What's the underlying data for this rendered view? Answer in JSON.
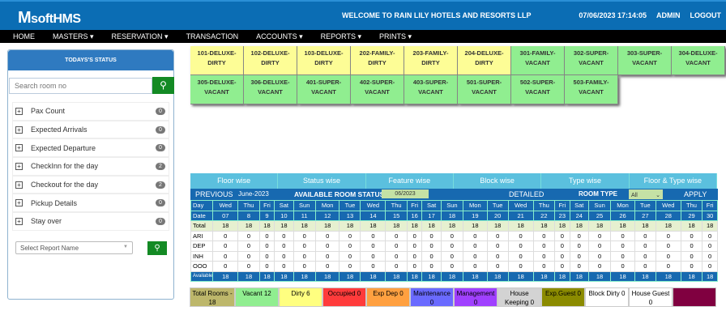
{
  "header": {
    "logo": "softHMS",
    "welcome": "WELCOME TO RAIN LILY HOTELS AND RESORTS LLP",
    "datetime": "07/06/2023 17:14:05",
    "user": "ADMIN",
    "logout": "LOGOUT"
  },
  "nav": [
    "HOME",
    "MASTERS ▾",
    "RESERVATION ▾",
    "TRANSACTION",
    "ACCOUNTS ▾",
    "REPORTS ▾",
    "PRINTS ▾"
  ],
  "sidebar": {
    "title": "TODAYS'S STATUS",
    "search_placeholder": "Search room no",
    "items": [
      {
        "label": "Pax Count",
        "count": "0"
      },
      {
        "label": "Expected Arrivals",
        "count": "0"
      },
      {
        "label": "Expected Departure",
        "count": "0"
      },
      {
        "label": "CheckInn for the day",
        "count": "2"
      },
      {
        "label": "Checkout for the day",
        "count": "2"
      },
      {
        "label": "Pickup Details",
        "count": "0"
      },
      {
        "label": "Stay over",
        "count": "0"
      }
    ],
    "report_placeholder": "Select Report Name"
  },
  "colors": {
    "dirty": "#fdfd96",
    "vacant": "#90ee90"
  },
  "rooms": [
    {
      "l1": "101-DELUXE-",
      "l2": "DIRTY",
      "s": "dirty"
    },
    {
      "l1": "102-DELUXE-",
      "l2": "DIRTY",
      "s": "dirty"
    },
    {
      "l1": "103-DELUXE-",
      "l2": "DIRTY",
      "s": "dirty"
    },
    {
      "l1": "202-FAMILY-",
      "l2": "DIRTY",
      "s": "dirty"
    },
    {
      "l1": "203-FAMILY-",
      "l2": "DIRTY",
      "s": "dirty"
    },
    {
      "l1": "204-DELUXE-",
      "l2": "DIRTY",
      "s": "dirty"
    },
    {
      "l1": "301-FAMILY-",
      "l2": "VACANT",
      "s": "vacant"
    },
    {
      "l1": "302-SUPER-",
      "l2": "VACANT",
      "s": "vacant"
    },
    {
      "l1": "303-SUPER-",
      "l2": "VACANT",
      "s": "vacant"
    },
    {
      "l1": "304-DELUXE-",
      "l2": "VACANT",
      "s": "vacant"
    },
    {
      "l1": "305-DELUXE-",
      "l2": "VACANT",
      "s": "vacant"
    },
    {
      "l1": "306-DELUXE-",
      "l2": "VACANT",
      "s": "vacant"
    },
    {
      "l1": "401-SUPER-",
      "l2": "VACANT",
      "s": "vacant"
    },
    {
      "l1": "402-SUPER-",
      "l2": "VACANT",
      "s": "vacant"
    },
    {
      "l1": "403-SUPER-",
      "l2": "VACANT",
      "s": "vacant"
    },
    {
      "l1": "501-SUPER-",
      "l2": "VACANT",
      "s": "vacant"
    },
    {
      "l1": "502-SUPER-",
      "l2": "VACANT",
      "s": "vacant"
    },
    {
      "l1": "503-FAMILY-",
      "l2": "VACANT",
      "s": "vacant"
    }
  ],
  "tabs": [
    "Floor wise",
    "Status wise",
    "Feature wise",
    "Block wise",
    "Type wise",
    "Floor & Type wise"
  ],
  "controls": {
    "previous": "PREVIOUS",
    "month": "June-2023",
    "title": "AVAILABLE ROOM STATUS",
    "month_input": "06/2023",
    "detailed": "DETAILED",
    "room_type_label": "ROOM TYPE",
    "room_type": "All",
    "apply": "APPLY"
  },
  "grid": {
    "days": [
      "Day",
      "Wed",
      "Thu",
      "Fri",
      "Sat",
      "Sun",
      "Mon",
      "Tue",
      "Wed",
      "Thu",
      "Fri",
      "Sat",
      "Sun",
      "Mon",
      "Tue",
      "Wed",
      "Thu",
      "Fri",
      "Sat",
      "Sun",
      "Mon",
      "Tue",
      "Wed",
      "Thu",
      "Fri"
    ],
    "dates": [
      "Date",
      "07",
      "8",
      "9",
      "10",
      "11",
      "12",
      "13",
      "14",
      "15",
      "16",
      "17",
      "18",
      "19",
      "20",
      "21",
      "22",
      "23",
      "24",
      "25",
      "26",
      "27",
      "28",
      "29",
      "30"
    ],
    "rows": [
      {
        "label": "Total",
        "v": "18"
      },
      {
        "label": "ARI",
        "v": "0"
      },
      {
        "label": "DEP",
        "v": "0"
      },
      {
        "label": "INH",
        "v": "0"
      },
      {
        "label": "OOO",
        "v": "0"
      },
      {
        "label": "Available",
        "v": "18"
      }
    ]
  },
  "legend": [
    {
      "t": "Total Rooms - 18",
      "c": "#bdb76b",
      "w": 56
    },
    {
      "t": "Vacant 12",
      "c": "#90ee90",
      "w": 54
    },
    {
      "t": "Dirty 6",
      "c": "#ffff80",
      "w": 54
    },
    {
      "t": "Occupied 0",
      "c": "#ff3b3b",
      "w": 54
    },
    {
      "t": "Exp Dep 0",
      "c": "#ffa040",
      "w": 54
    },
    {
      "t": "Maintenance 0",
      "c": "#6a6aff",
      "w": 54
    },
    {
      "t": "Management 0",
      "c": "#a040ff",
      "w": 54
    },
    {
      "t": "House Keeping 0",
      "c": "#d3d3d3",
      "w": 54
    },
    {
      "t": "Exp.Guest 0",
      "c": "#8b8b00",
      "w": 54
    },
    {
      "t": "Block Dirty 0",
      "c": "#ffffff",
      "w": 54
    },
    {
      "t": "House Guest 0",
      "c": "#ffffff",
      "w": 54
    },
    {
      "t": "",
      "c": "#800040",
      "w": 54
    }
  ]
}
